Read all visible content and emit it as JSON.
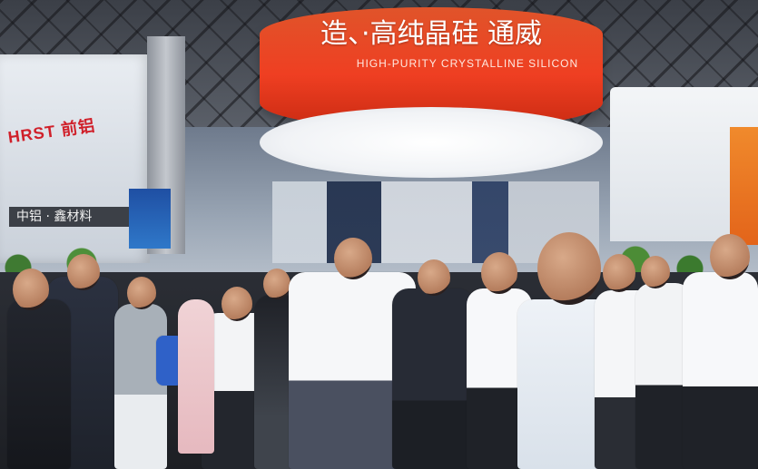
{
  "scene": {
    "description_visible_text": {
      "drum_main": "造、·高纯晶硅 通威",
      "drum_sub": "HIGH-PURITY CRYSTALLINE SILICON",
      "left_sign": "HRST 前铝",
      "left_band": "中铝 · 鑫材料"
    },
    "colors": {
      "drum_red": "#ef3f22",
      "drum_white": "#f1f3f6",
      "shirt_white": "#f7f8fa",
      "suit_dark": "#2c2f36",
      "booth_orange": "#e3641a"
    }
  }
}
